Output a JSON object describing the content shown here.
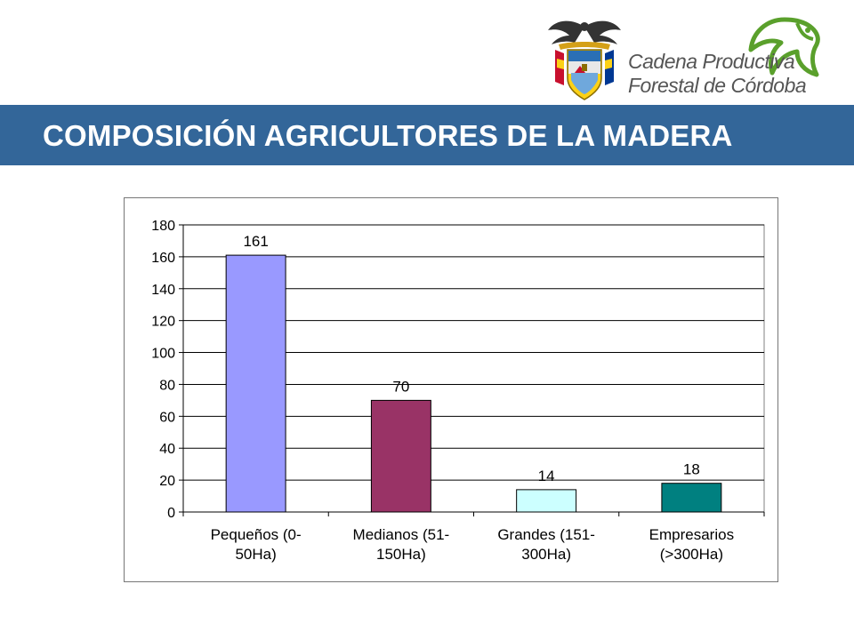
{
  "header": {
    "brand_line1": "Cadena Productiva",
    "brand_line2": "Forestal de Córdoba",
    "crest_icon": "colombia-coat-of-arms-icon",
    "leaf_icon": "green-leaf-logo-icon"
  },
  "title_bar": {
    "title": "COMPOSICIÓN AGRICULTORES DE LA MADERA",
    "background": "#336699",
    "text_color": "#ffffff"
  },
  "chart_data": {
    "type": "bar",
    "title": "",
    "xlabel": "",
    "ylabel": "",
    "categories": [
      [
        "Pequeños (0-",
        "50Ha)"
      ],
      [
        "Medianos (51-",
        "150Ha)"
      ],
      [
        "Grandes (151-",
        "300Ha)"
      ],
      [
        "Empresarios",
        "(>300Ha)"
      ]
    ],
    "values": [
      161,
      70,
      14,
      18
    ],
    "bar_colors": [
      "#9999ff",
      "#993366",
      "#ccffff",
      "#008080"
    ],
    "ylim": [
      0,
      180
    ],
    "yticks": [
      0,
      20,
      40,
      60,
      80,
      100,
      120,
      140,
      160,
      180
    ],
    "grid": true,
    "legend": "none",
    "data_labels": true
  }
}
